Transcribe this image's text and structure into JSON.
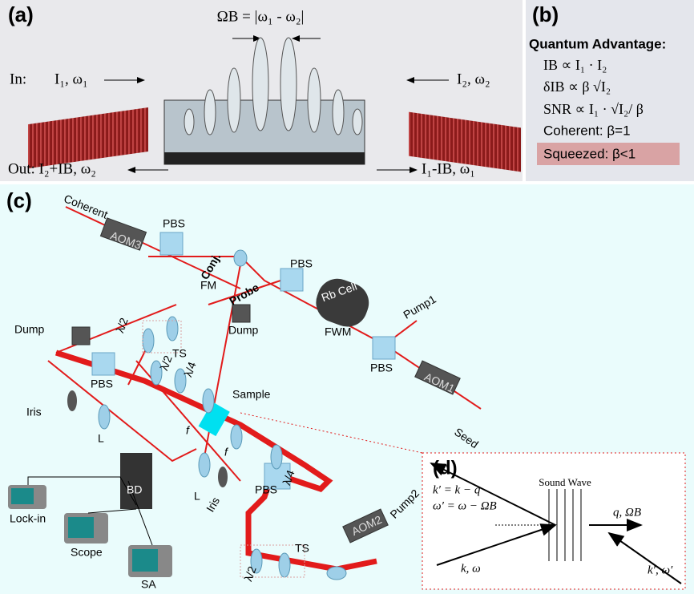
{
  "panel_a": {
    "label": "(a)",
    "beat_formula": "ΩB = |ω₁ - ω₂|",
    "in_label": "In:",
    "input_1": "I₁, ω₁",
    "input_2": "I₂, ω₂",
    "output_2": "Out: I₂+IB, ω₂",
    "output_1": "I₁-IB, ω₁"
  },
  "panel_b": {
    "label": "(b)",
    "title": "Quantum Advantage:",
    "lines": [
      "IB ∝ I₁ · I₂",
      "δIB ∝ β √I₂",
      "SNR ∝ I₁ · √I₂/ β",
      "Coherent: β=1",
      "Squeezed: β<1"
    ]
  },
  "panel_c": {
    "label": "(c)",
    "labels": [
      "Coherent",
      "AOM3",
      "PBS",
      "FM",
      "Conj.",
      "Probe",
      "PBS",
      "Dump",
      "Rb Cell",
      "FWM",
      "Pump1",
      "PBS",
      "AOM1",
      "Seed",
      "Dump",
      "λ/2",
      "TS",
      "PBS",
      "λ/2",
      "λ/4",
      "Sample",
      "Iris",
      "L",
      "f",
      "f",
      "λ/4",
      "BD",
      "L",
      "Iris",
      "PBS",
      "Lock-in",
      "Scope",
      "SA",
      "λ/2",
      "TS",
      "AOM2",
      "Pump2"
    ]
  },
  "panel_d": {
    "label": "(d)",
    "scattered_k": "k′ = k − q",
    "scattered_omega": "ω′ = ω − ΩB",
    "sound_wave": "Sound Wave",
    "phonon": "q, ΩB",
    "input": "k, ω",
    "input_2": "k′, ω′"
  }
}
